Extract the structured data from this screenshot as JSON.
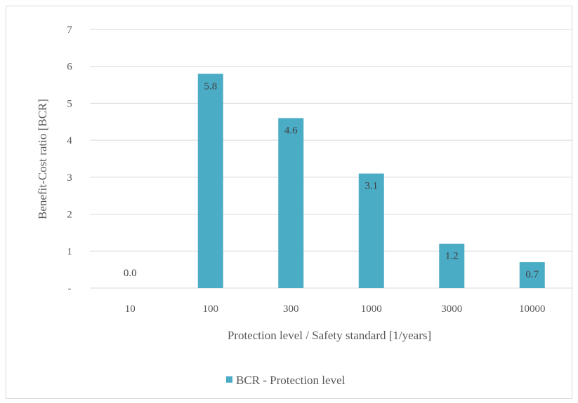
{
  "chart_data": {
    "type": "bar",
    "title": "",
    "xlabel": "Protection level  / Safety standard  [1/years]",
    "ylabel": "Benefit-Cost ratio  [BCR]",
    "categories": [
      "10",
      "100",
      "300",
      "1000",
      "3000",
      "10000"
    ],
    "series": [
      {
        "name": "BCR - Protection level",
        "values": [
          0.0,
          5.8,
          4.6,
          3.1,
          1.2,
          0.7
        ],
        "labels": [
          "0.0",
          "5.8",
          "4.6",
          "3.1",
          "1.2",
          "0.7"
        ],
        "color": "#4bacc6"
      }
    ],
    "ylim": [
      0,
      7
    ],
    "yticks": [
      "-",
      "1",
      "2",
      "3",
      "4",
      "5",
      "6",
      "7"
    ],
    "grid": true,
    "legend_position": "bottom"
  }
}
